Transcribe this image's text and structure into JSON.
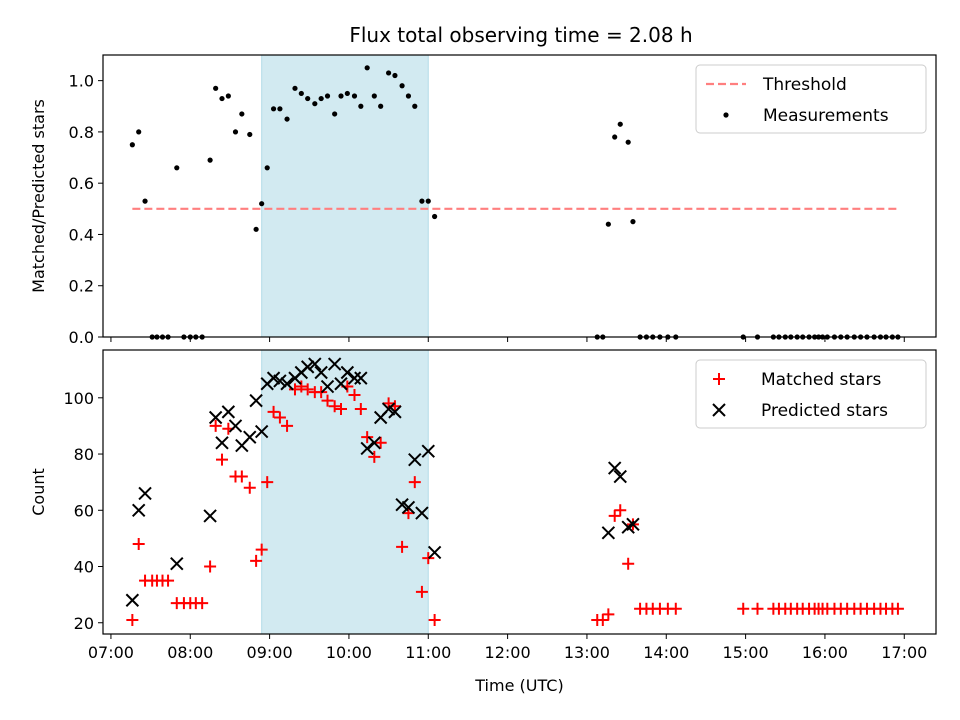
{
  "title": "Flux total observing time = 2.08 h",
  "colors": {
    "threshold": "#ff7f7f",
    "measurement": "#000000",
    "matched": "#ff0000",
    "predicted": "#000000",
    "span": "#add8e6"
  },
  "chart_data": [
    {
      "type": "scatter",
      "ylabel": "Matched/Predicted stars",
      "ylim": [
        0,
        1.1
      ],
      "yticks": [
        0,
        0.2,
        0.4,
        0.6,
        0.8,
        1.0
      ],
      "ytick_labels": [
        "0.0",
        "0.2",
        "0.4",
        "0.6",
        "0.8",
        "1.0"
      ],
      "xlim": [
        6.9,
        17.4
      ],
      "xticks": [
        7,
        8,
        9,
        10,
        11,
        12,
        13,
        14,
        15,
        16,
        17
      ],
      "shaded_span": [
        8.9,
        11.0
      ],
      "legend": {
        "placement": "top-right",
        "entries": [
          "Threshold",
          "Measurements"
        ]
      },
      "threshold": {
        "name": "Threshold",
        "x": [
          7.27,
          16.92
        ],
        "y": 0.5
      },
      "measurements": {
        "name": "Measurements",
        "x": [
          7.27,
          7.35,
          7.43,
          7.52,
          7.58,
          7.65,
          7.72,
          7.83,
          7.92,
          8.0,
          8.07,
          8.15,
          8.25,
          8.32,
          8.4,
          8.48,
          8.57,
          8.65,
          8.75,
          8.83,
          8.9,
          8.97,
          9.05,
          9.13,
          9.22,
          9.32,
          9.4,
          9.48,
          9.57,
          9.65,
          9.73,
          9.82,
          9.9,
          9.98,
          10.07,
          10.15,
          10.23,
          10.32,
          10.4,
          10.5,
          10.58,
          10.67,
          10.75,
          10.83,
          10.92,
          11.0,
          11.08,
          13.13,
          13.2,
          13.27,
          13.35,
          13.42,
          13.52,
          13.58,
          13.67,
          13.75,
          13.83,
          13.92,
          14.02,
          14.12,
          14.97,
          15.15,
          15.35,
          15.42,
          15.5,
          15.57,
          15.65,
          15.72,
          15.8,
          15.87,
          15.92,
          15.97,
          16.03,
          16.12,
          16.2,
          16.28,
          16.37,
          16.45,
          16.53,
          16.62,
          16.7,
          16.77,
          16.85,
          16.92
        ],
        "y": [
          0.75,
          0.8,
          0.53,
          0,
          0,
          0,
          0,
          0.66,
          0,
          0,
          0,
          0,
          0.69,
          0.97,
          0.93,
          0.94,
          0.8,
          0.87,
          0.79,
          0.42,
          0.52,
          0.66,
          0.89,
          0.89,
          0.85,
          0.97,
          0.95,
          0.93,
          0.91,
          0.93,
          0.94,
          0.87,
          0.94,
          0.95,
          0.94,
          0.9,
          1.05,
          0.94,
          0.9,
          1.03,
          1.02,
          0.98,
          0.94,
          0.9,
          0.53,
          0.53,
          0.47,
          0,
          0,
          0.44,
          0.78,
          0.83,
          0.76,
          0.45,
          0,
          0,
          0,
          0,
          0,
          0,
          0,
          0,
          0,
          0,
          0,
          0,
          0,
          0,
          0,
          0,
          0,
          0,
          0,
          0,
          0,
          0,
          0,
          0,
          0,
          0,
          0,
          0,
          0,
          0
        ]
      }
    },
    {
      "type": "scatter",
      "xlabel": "Time (UTC)",
      "ylabel": "Count",
      "ylim": [
        16,
        117
      ],
      "yticks": [
        20,
        40,
        60,
        80,
        100
      ],
      "ytick_labels": [
        "20",
        "40",
        "60",
        "80",
        "100"
      ],
      "xlim": [
        6.9,
        17.4
      ],
      "xticks": [
        7,
        8,
        9,
        10,
        11,
        12,
        13,
        14,
        15,
        16,
        17
      ],
      "xtick_labels": [
        "07:00",
        "08:00",
        "09:00",
        "10:00",
        "11:00",
        "12:00",
        "13:00",
        "14:00",
        "15:00",
        "16:00",
        "17:00"
      ],
      "shaded_span": [
        8.9,
        11.0
      ],
      "legend": {
        "placement": "top-right",
        "entries": [
          "Matched stars",
          "Predicted stars"
        ]
      },
      "series": [
        {
          "name": "Matched stars",
          "x": [
            7.27,
            7.35,
            7.43,
            7.52,
            7.58,
            7.65,
            7.72,
            7.83,
            7.92,
            8.0,
            8.07,
            8.15,
            8.25,
            8.32,
            8.4,
            8.48,
            8.57,
            8.65,
            8.75,
            8.83,
            8.9,
            8.97,
            9.05,
            9.13,
            9.22,
            9.32,
            9.4,
            9.48,
            9.57,
            9.65,
            9.73,
            9.82,
            9.9,
            9.98,
            10.07,
            10.15,
            10.23,
            10.32,
            10.4,
            10.5,
            10.58,
            10.67,
            10.75,
            10.83,
            10.92,
            11.0,
            11.08,
            13.13,
            13.2,
            13.27,
            13.35,
            13.42,
            13.52,
            13.58,
            13.67,
            13.75,
            13.83,
            13.92,
            14.02,
            14.12,
            14.97,
            15.15,
            15.35,
            15.42,
            15.5,
            15.57,
            15.65,
            15.72,
            15.8,
            15.87,
            15.92,
            15.97,
            16.03,
            16.12,
            16.2,
            16.28,
            16.37,
            16.45,
            16.53,
            16.62,
            16.7,
            16.77,
            16.85,
            16.92
          ],
          "y": [
            21,
            48,
            35,
            35,
            35,
            35,
            35,
            27,
            27,
            27,
            27,
            27,
            40,
            90,
            78,
            89,
            72,
            72,
            68,
            42,
            46,
            70,
            95,
            93,
            90,
            103,
            104,
            103,
            102,
            102,
            99,
            97,
            96,
            104,
            101,
            96,
            86,
            79,
            84,
            98,
            97,
            47,
            59,
            70,
            31,
            43,
            21,
            21,
            21,
            23,
            58,
            60,
            41,
            55,
            25,
            25,
            25,
            25,
            25,
            25,
            25,
            25,
            25,
            25,
            25,
            25,
            25,
            25,
            25,
            25,
            25,
            25,
            25,
            25,
            25,
            25,
            25,
            25,
            25,
            25,
            25,
            25,
            25,
            25
          ]
        },
        {
          "name": "Predicted stars",
          "x": [
            7.27,
            7.35,
            7.43,
            7.83,
            8.25,
            8.32,
            8.4,
            8.48,
            8.57,
            8.65,
            8.75,
            8.83,
            8.9,
            8.97,
            9.05,
            9.13,
            9.22,
            9.32,
            9.4,
            9.48,
            9.57,
            9.65,
            9.73,
            9.82,
            9.9,
            9.98,
            10.07,
            10.15,
            10.23,
            10.32,
            10.4,
            10.5,
            10.58,
            10.67,
            10.75,
            10.83,
            10.92,
            11.0,
            11.08,
            13.27,
            13.35,
            13.42,
            13.52,
            13.58
          ],
          "y": [
            28,
            60,
            66,
            41,
            58,
            93,
            84,
            95,
            90,
            83,
            86,
            99,
            88,
            105,
            107,
            106,
            105,
            107,
            109,
            111,
            112,
            109,
            104,
            112,
            105,
            109,
            107,
            107,
            82,
            84,
            93,
            96,
            95,
            62,
            61,
            78,
            59,
            81,
            45,
            52,
            75,
            72,
            54,
            55
          ]
        }
      ]
    }
  ]
}
